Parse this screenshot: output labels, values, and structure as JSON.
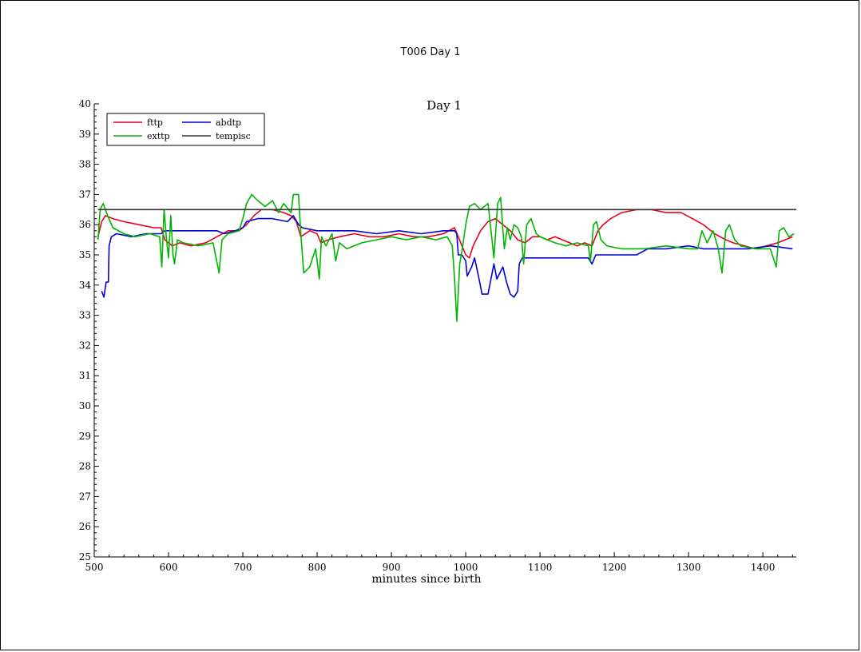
{
  "document": {
    "title": "T006 Day 1"
  },
  "chart_data": {
    "type": "line",
    "title": "Day 1",
    "xlabel": "minutes since birth",
    "ylabel": "",
    "xlim": [
      500,
      1445
    ],
    "ylim": [
      25,
      40
    ],
    "xticks": [
      500,
      600,
      700,
      800,
      900,
      1000,
      1100,
      1200,
      1300,
      1400
    ],
    "yticks": [
      25,
      26,
      27,
      28,
      29,
      30,
      31,
      32,
      33,
      34,
      35,
      36,
      37,
      38,
      39,
      40
    ],
    "legend": {
      "placement": "top-left"
    },
    "series": [
      {
        "name": "fttp",
        "color": "#e8001c",
        "points": [
          [
            505,
            35.6
          ],
          [
            510,
            36.1
          ],
          [
            515,
            36.3
          ],
          [
            525,
            36.2
          ],
          [
            540,
            36.1
          ],
          [
            560,
            36.0
          ],
          [
            580,
            35.9
          ],
          [
            590,
            35.9
          ],
          [
            595,
            35.5
          ],
          [
            605,
            35.3
          ],
          [
            615,
            35.4
          ],
          [
            630,
            35.3
          ],
          [
            650,
            35.4
          ],
          [
            665,
            35.6
          ],
          [
            680,
            35.8
          ],
          [
            695,
            35.8
          ],
          [
            705,
            36.0
          ],
          [
            715,
            36.3
          ],
          [
            725,
            36.5
          ],
          [
            740,
            36.5
          ],
          [
            755,
            36.4
          ],
          [
            765,
            36.3
          ],
          [
            772,
            36.1
          ],
          [
            778,
            35.6
          ],
          [
            790,
            35.8
          ],
          [
            800,
            35.7
          ],
          [
            805,
            35.4
          ],
          [
            815,
            35.5
          ],
          [
            830,
            35.6
          ],
          [
            850,
            35.7
          ],
          [
            870,
            35.6
          ],
          [
            890,
            35.6
          ],
          [
            910,
            35.7
          ],
          [
            930,
            35.6
          ],
          [
            950,
            35.6
          ],
          [
            970,
            35.7
          ],
          [
            985,
            35.9
          ],
          [
            990,
            35.6
          ],
          [
            995,
            35.3
          ],
          [
            1000,
            35.0
          ],
          [
            1005,
            34.9
          ],
          [
            1010,
            35.3
          ],
          [
            1020,
            35.8
          ],
          [
            1030,
            36.1
          ],
          [
            1040,
            36.2
          ],
          [
            1050,
            36.0
          ],
          [
            1060,
            35.8
          ],
          [
            1070,
            35.5
          ],
          [
            1080,
            35.4
          ],
          [
            1090,
            35.6
          ],
          [
            1100,
            35.6
          ],
          [
            1110,
            35.5
          ],
          [
            1120,
            35.6
          ],
          [
            1130,
            35.5
          ],
          [
            1140,
            35.4
          ],
          [
            1150,
            35.3
          ],
          [
            1160,
            35.4
          ],
          [
            1170,
            35.3
          ],
          [
            1178,
            35.8
          ],
          [
            1185,
            36.0
          ],
          [
            1195,
            36.2
          ],
          [
            1210,
            36.4
          ],
          [
            1230,
            36.5
          ],
          [
            1250,
            36.5
          ],
          [
            1270,
            36.4
          ],
          [
            1290,
            36.4
          ],
          [
            1305,
            36.2
          ],
          [
            1320,
            36.0
          ],
          [
            1335,
            35.7
          ],
          [
            1350,
            35.5
          ],
          [
            1360,
            35.4
          ],
          [
            1375,
            35.3
          ],
          [
            1390,
            35.2
          ],
          [
            1405,
            35.3
          ],
          [
            1420,
            35.4
          ],
          [
            1430,
            35.5
          ],
          [
            1440,
            35.6
          ]
        ]
      },
      {
        "name": "abdtp",
        "color": "#0000d8",
        "points": [
          [
            510,
            33.8
          ],
          [
            513,
            33.6
          ],
          [
            516,
            34.1
          ],
          [
            519,
            34.1
          ],
          [
            520,
            35.3
          ],
          [
            523,
            35.6
          ],
          [
            530,
            35.7
          ],
          [
            550,
            35.6
          ],
          [
            570,
            35.7
          ],
          [
            590,
            35.7
          ],
          [
            595,
            35.8
          ],
          [
            640,
            35.8
          ],
          [
            665,
            35.8
          ],
          [
            675,
            35.7
          ],
          [
            690,
            35.8
          ],
          [
            700,
            35.9
          ],
          [
            705,
            36.1
          ],
          [
            720,
            36.2
          ],
          [
            740,
            36.2
          ],
          [
            760,
            36.1
          ],
          [
            768,
            36.3
          ],
          [
            775,
            36.0
          ],
          [
            780,
            35.9
          ],
          [
            800,
            35.8
          ],
          [
            820,
            35.8
          ],
          [
            850,
            35.8
          ],
          [
            880,
            35.7
          ],
          [
            910,
            35.8
          ],
          [
            940,
            35.7
          ],
          [
            970,
            35.8
          ],
          [
            985,
            35.8
          ],
          [
            988,
            35.7
          ],
          [
            990,
            35.0
          ],
          [
            995,
            35.0
          ],
          [
            1000,
            34.8
          ],
          [
            1002,
            34.3
          ],
          [
            1008,
            34.6
          ],
          [
            1012,
            34.9
          ],
          [
            1018,
            34.2
          ],
          [
            1022,
            33.7
          ],
          [
            1030,
            33.7
          ],
          [
            1038,
            34.7
          ],
          [
            1042,
            34.2
          ],
          [
            1050,
            34.6
          ],
          [
            1055,
            34.1
          ],
          [
            1060,
            33.7
          ],
          [
            1065,
            33.6
          ],
          [
            1070,
            33.8
          ],
          [
            1072,
            34.7
          ],
          [
            1076,
            34.9
          ],
          [
            1090,
            34.9
          ],
          [
            1110,
            34.9
          ],
          [
            1130,
            34.9
          ],
          [
            1150,
            34.9
          ],
          [
            1165,
            34.9
          ],
          [
            1170,
            34.7
          ],
          [
            1175,
            35.0
          ],
          [
            1200,
            35.0
          ],
          [
            1230,
            35.0
          ],
          [
            1245,
            35.2
          ],
          [
            1270,
            35.2
          ],
          [
            1300,
            35.3
          ],
          [
            1320,
            35.2
          ],
          [
            1350,
            35.2
          ],
          [
            1380,
            35.2
          ],
          [
            1410,
            35.3
          ],
          [
            1440,
            35.2
          ]
        ]
      },
      {
        "name": "exttp",
        "color": "#00b400",
        "points": [
          [
            505,
            35.5
          ],
          [
            508,
            36.5
          ],
          [
            512,
            36.7
          ],
          [
            518,
            36.3
          ],
          [
            525,
            35.9
          ],
          [
            540,
            35.7
          ],
          [
            555,
            35.6
          ],
          [
            575,
            35.7
          ],
          [
            588,
            35.6
          ],
          [
            591,
            34.6
          ],
          [
            594,
            36.5
          ],
          [
            597,
            35.6
          ],
          [
            600,
            34.9
          ],
          [
            603,
            36.3
          ],
          [
            606,
            35.0
          ],
          [
            608,
            34.7
          ],
          [
            612,
            35.5
          ],
          [
            620,
            35.4
          ],
          [
            640,
            35.3
          ],
          [
            660,
            35.4
          ],
          [
            668,
            34.4
          ],
          [
            672,
            35.5
          ],
          [
            680,
            35.7
          ],
          [
            695,
            35.8
          ],
          [
            700,
            36.2
          ],
          [
            705,
            36.7
          ],
          [
            712,
            37.0
          ],
          [
            720,
            36.8
          ],
          [
            730,
            36.6
          ],
          [
            740,
            36.8
          ],
          [
            748,
            36.4
          ],
          [
            755,
            36.7
          ],
          [
            765,
            36.4
          ],
          [
            768,
            37.0
          ],
          [
            775,
            37.0
          ],
          [
            778,
            35.7
          ],
          [
            782,
            34.4
          ],
          [
            790,
            34.6
          ],
          [
            798,
            35.2
          ],
          [
            803,
            34.2
          ],
          [
            806,
            35.6
          ],
          [
            812,
            35.3
          ],
          [
            820,
            35.7
          ],
          [
            825,
            34.8
          ],
          [
            830,
            35.4
          ],
          [
            840,
            35.2
          ],
          [
            860,
            35.4
          ],
          [
            880,
            35.5
          ],
          [
            900,
            35.6
          ],
          [
            920,
            35.5
          ],
          [
            940,
            35.6
          ],
          [
            960,
            35.5
          ],
          [
            975,
            35.6
          ],
          [
            982,
            35.3
          ],
          [
            985,
            34.2
          ],
          [
            988,
            32.8
          ],
          [
            992,
            34.7
          ],
          [
            996,
            35.3
          ],
          [
            1000,
            36.0
          ],
          [
            1005,
            36.6
          ],
          [
            1012,
            36.7
          ],
          [
            1020,
            36.5
          ],
          [
            1030,
            36.7
          ],
          [
            1035,
            35.6
          ],
          [
            1038,
            34.9
          ],
          [
            1043,
            36.7
          ],
          [
            1047,
            36.9
          ],
          [
            1052,
            35.2
          ],
          [
            1056,
            35.9
          ],
          [
            1060,
            35.5
          ],
          [
            1065,
            36.0
          ],
          [
            1070,
            35.9
          ],
          [
            1075,
            35.6
          ],
          [
            1078,
            34.7
          ],
          [
            1082,
            36.0
          ],
          [
            1088,
            36.2
          ],
          [
            1095,
            35.7
          ],
          [
            1100,
            35.6
          ],
          [
            1110,
            35.5
          ],
          [
            1120,
            35.4
          ],
          [
            1135,
            35.3
          ],
          [
            1150,
            35.4
          ],
          [
            1165,
            35.3
          ],
          [
            1168,
            34.8
          ],
          [
            1172,
            36.0
          ],
          [
            1176,
            36.1
          ],
          [
            1182,
            35.5
          ],
          [
            1190,
            35.3
          ],
          [
            1210,
            35.2
          ],
          [
            1240,
            35.2
          ],
          [
            1270,
            35.3
          ],
          [
            1300,
            35.2
          ],
          [
            1312,
            35.2
          ],
          [
            1318,
            35.8
          ],
          [
            1325,
            35.4
          ],
          [
            1333,
            35.8
          ],
          [
            1340,
            35.2
          ],
          [
            1345,
            34.4
          ],
          [
            1350,
            35.8
          ],
          [
            1355,
            36.0
          ],
          [
            1362,
            35.5
          ],
          [
            1370,
            35.3
          ],
          [
            1390,
            35.2
          ],
          [
            1410,
            35.2
          ],
          [
            1418,
            34.6
          ],
          [
            1422,
            35.8
          ],
          [
            1428,
            35.9
          ],
          [
            1435,
            35.6
          ],
          [
            1442,
            35.7
          ]
        ]
      },
      {
        "name": "tempisc",
        "color": "#333333",
        "points": [
          [
            505,
            36.5
          ],
          [
            1445,
            36.5
          ]
        ]
      }
    ]
  }
}
